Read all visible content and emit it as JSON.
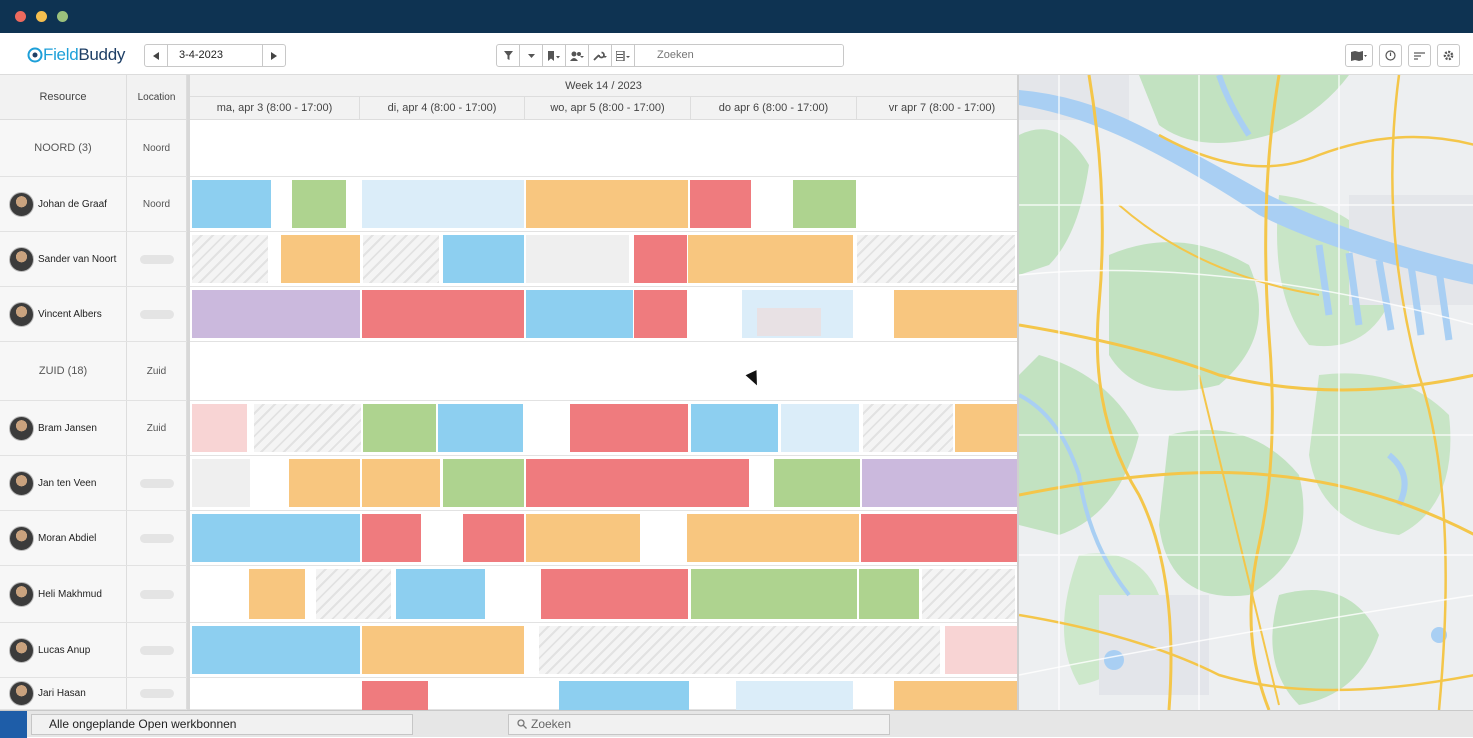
{
  "window": {
    "dots": [
      "#ed6a5e",
      "#f5bf4f",
      "#9bc17c"
    ]
  },
  "toolbar": {
    "logo_prefix": "Field",
    "logo_suffix": "Buddy",
    "date": "3-4-2023",
    "prev_icon": "chevron-left-icon",
    "next_icon": "chevron-right-icon",
    "search_placeholder": "Zoeken",
    "filter_icons": [
      "filter-icon",
      "dropdown-icon",
      "bookmark-icon",
      "users-icon",
      "wrench-icon",
      "list-icon"
    ],
    "right_icons": [
      "map-icon",
      "clock-icon",
      "sort-icon",
      "settings-icon"
    ]
  },
  "grid": {
    "header": {
      "resource": "Resource",
      "location": "Location",
      "week": "Week 14 / 2023",
      "days": [
        "ma, apr 3 (8:00 - 17:00)",
        "di, apr 4 (8:00 - 17:00)",
        "wo, apr 5 (8:00 - 17:00)",
        "do apr 6 (8:00 - 17:00)",
        "vr apr 7 (8:00 - 17:00)"
      ]
    },
    "rows": [
      {
        "type": "group",
        "name": "NOORD (3)",
        "location": "Noord"
      },
      {
        "type": "person",
        "name": "Johan de Graaf",
        "location": "Noord"
      },
      {
        "type": "person",
        "name": "Sander van Noort",
        "location": ""
      },
      {
        "type": "person",
        "name": "Vincent Albers",
        "location": ""
      },
      {
        "type": "group",
        "name": "ZUID (18)",
        "location": "Zuid"
      },
      {
        "type": "person",
        "name": "Bram Jansen",
        "location": "Zuid"
      },
      {
        "type": "person",
        "name": "Jan ten Veen",
        "location": ""
      },
      {
        "type": "person",
        "name": "Moran Abdiel",
        "location": ""
      },
      {
        "type": "person",
        "name": "Heli Makhmud",
        "location": ""
      },
      {
        "type": "person",
        "name": "Lucas Anup",
        "location": ""
      },
      {
        "type": "person",
        "name": "Jari Hasan",
        "location": ""
      }
    ]
  },
  "colors": {
    "blue": "#8dcff0",
    "green": "#aed38f",
    "orange": "#f8c67f",
    "red": "#ef7b7e",
    "lightblue": "#dbedf9",
    "purple": "#cbb9dd",
    "pink": "#f8d4d4",
    "grey": "#efefef",
    "map_road": "#f5c74a",
    "map_park": "#bfe0bf",
    "map_water": "#a9d0f5"
  },
  "bottombar": {
    "title": "Alle ongeplande Open werkbonnen",
    "search_placeholder": "Zoeken"
  }
}
